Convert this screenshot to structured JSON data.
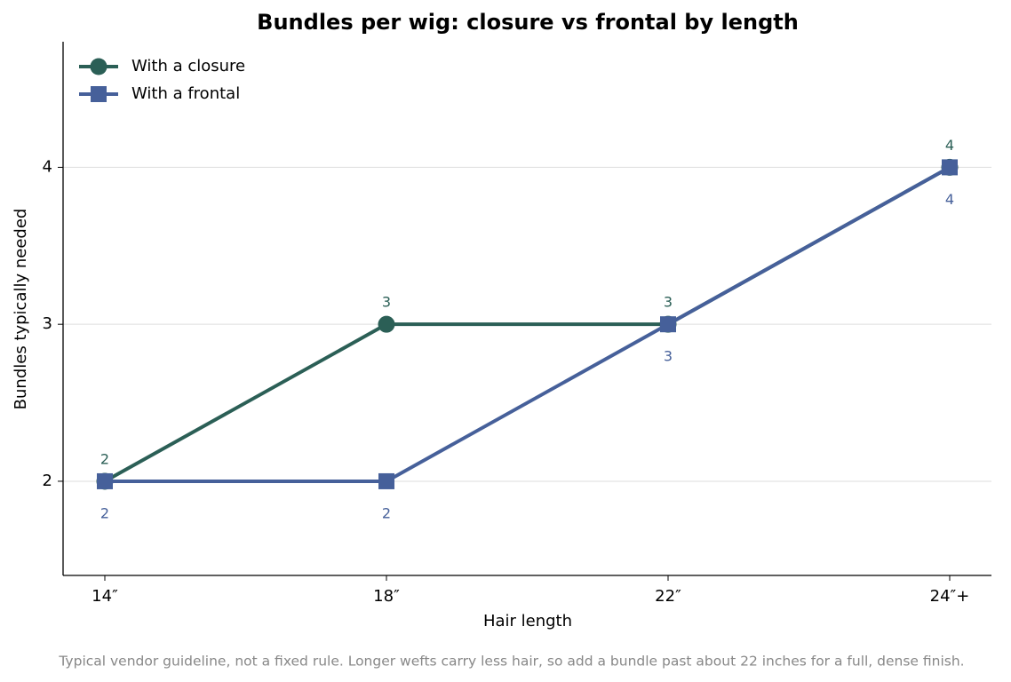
{
  "chart_data": {
    "type": "line",
    "title": "Bundles per wig: closure vs frontal by length",
    "x_label": "Hair length",
    "y_label": "Bundles typically needed",
    "footnote": "Typical vendor guideline, not a fixed rule. Longer wefts carry less hair, so add a bundle past about 22 inches for a full, dense finish.",
    "categories": [
      "14″",
      "18″",
      "22″",
      "24″+"
    ],
    "series": [
      {
        "name": "With a closure",
        "color": "#2b5f56",
        "marker": "circle",
        "values": [
          2,
          3,
          3,
          4
        ]
      },
      {
        "name": "With a frontal",
        "color": "#46609a",
        "marker": "square",
        "values": [
          2,
          2,
          3,
          4
        ]
      }
    ],
    "ylim": [
      1.4,
      4.8
    ],
    "yticks": [
      2,
      3,
      4
    ],
    "grid": true,
    "legend": "upper left"
  }
}
